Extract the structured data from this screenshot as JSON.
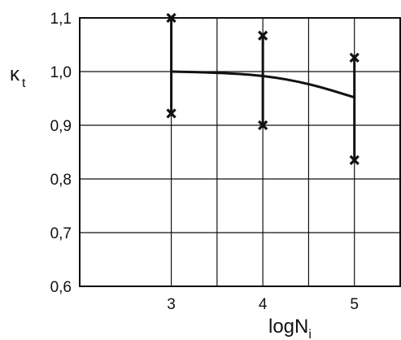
{
  "chart_data": {
    "type": "line",
    "title": "",
    "xlabel": {
      "symbol": "logN",
      "subscript": "i"
    },
    "ylabel": {
      "symbol": "κ",
      "subscript": "t"
    },
    "xlim": [
      2,
      5.5
    ],
    "ylim": [
      0.6,
      1.1
    ],
    "grid": true,
    "x_ticks": [
      {
        "value": 3,
        "label": "3"
      },
      {
        "value": 4,
        "label": "4"
      },
      {
        "value": 5,
        "label": "5"
      }
    ],
    "y_ticks": [
      {
        "value": 0.6,
        "label": "0,6"
      },
      {
        "value": 0.7,
        "label": "0,7"
      },
      {
        "value": 0.8,
        "label": "0,8"
      },
      {
        "value": 0.9,
        "label": "0,9"
      },
      {
        "value": 1.0,
        "label": "1,0"
      },
      {
        "value": 1.1,
        "label": "1,1"
      }
    ],
    "curve": {
      "x": [
        3,
        3.5,
        4,
        4.5,
        5
      ],
      "y": [
        1.0,
        0.998,
        0.993,
        0.978,
        0.952
      ]
    },
    "ranges": [
      {
        "x": 3,
        "low": 0.922,
        "high": 1.1
      },
      {
        "x": 4,
        "low": 0.9,
        "high": 1.067
      },
      {
        "x": 5,
        "low": 0.835,
        "high": 1.026
      }
    ]
  }
}
